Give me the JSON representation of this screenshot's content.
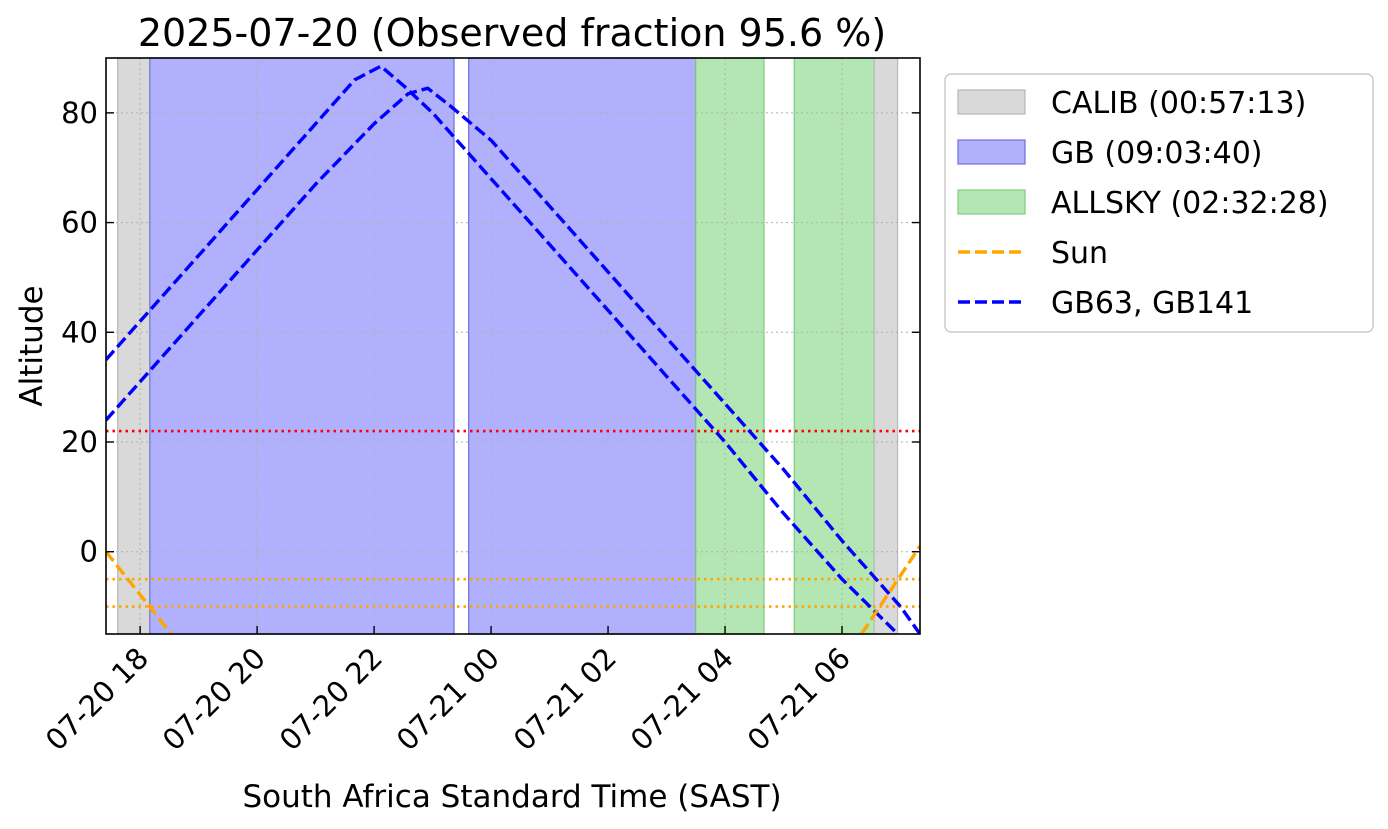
{
  "chart_data": {
    "type": "line",
    "title": "2025-07-20 (Observed fraction 95.6 %)",
    "xlabel": "South Africa Standard Time (SAST)",
    "ylabel": "Altitude",
    "xlim": [
      "2025-07-20 17:25",
      "2025-07-21 07:20"
    ],
    "ylim": [
      -15,
      90
    ],
    "x_ticks": [
      {
        "t": "2025-07-20 18:00",
        "label": "07-20 18"
      },
      {
        "t": "2025-07-20 20:00",
        "label": "07-20 20"
      },
      {
        "t": "2025-07-20 22:00",
        "label": "07-20 22"
      },
      {
        "t": "2025-07-21 00:00",
        "label": "07-21 00"
      },
      {
        "t": "2025-07-21 02:00",
        "label": "07-21 02"
      },
      {
        "t": "2025-07-21 04:00",
        "label": "07-21 04"
      },
      {
        "t": "2025-07-21 06:00",
        "label": "07-21 06"
      }
    ],
    "y_ticks": [
      0,
      20,
      40,
      60,
      80
    ],
    "grid": true,
    "legend_position": "outside-right",
    "spans": [
      {
        "category": "CALIB",
        "start": "2025-07-20 17:37",
        "end": "2025-07-20 18:10",
        "color": "#d9d9d9"
      },
      {
        "category": "GB",
        "start": "2025-07-20 18:10",
        "end": "2025-07-20 23:22",
        "color": "#b0b0fc"
      },
      {
        "category": "GB",
        "start": "2025-07-20 23:37",
        "end": "2025-07-21 03:30",
        "color": "#b0b0fc"
      },
      {
        "category": "ALLSKY",
        "start": "2025-07-21 03:30",
        "end": "2025-07-21 04:40",
        "color": "#b3e6b3"
      },
      {
        "category": "ALLSKY",
        "start": "2025-07-21 05:11",
        "end": "2025-07-21 06:33",
        "color": "#b3e6b3"
      },
      {
        "category": "CALIB",
        "start": "2025-07-21 06:33",
        "end": "2025-07-21 06:57",
        "color": "#d9d9d9"
      }
    ],
    "hlines": [
      {
        "y": 22,
        "color": "#ff0000"
      },
      {
        "y": -5,
        "color": "#ffa500"
      },
      {
        "y": -10,
        "color": "#ffa500"
      }
    ],
    "series": [
      {
        "group": "GB63, GB141",
        "color": "#0000ff",
        "points": [
          [
            "2025-07-20 17:25",
            35
          ],
          [
            "2025-07-20 18:00",
            42
          ],
          [
            "2025-07-20 19:00",
            54
          ],
          [
            "2025-07-20 20:00",
            66
          ],
          [
            "2025-07-20 21:00",
            78
          ],
          [
            "2025-07-20 21:40",
            86
          ],
          [
            "2025-07-20 22:07",
            88.5
          ],
          [
            "2025-07-20 22:30",
            85
          ],
          [
            "2025-07-20 23:00",
            80
          ],
          [
            "2025-07-21 00:00",
            68
          ],
          [
            "2025-07-21 01:00",
            56
          ],
          [
            "2025-07-21 02:00",
            44
          ],
          [
            "2025-07-21 03:00",
            32
          ],
          [
            "2025-07-21 04:00",
            20
          ],
          [
            "2025-07-21 05:00",
            7
          ],
          [
            "2025-07-21 06:00",
            -5
          ],
          [
            "2025-07-21 07:00",
            -15.5
          ]
        ]
      },
      {
        "group": "GB63, GB141",
        "color": "#0000ff",
        "points": [
          [
            "2025-07-20 17:25",
            24
          ],
          [
            "2025-07-20 18:00",
            31
          ],
          [
            "2025-07-20 19:00",
            43
          ],
          [
            "2025-07-20 20:00",
            55
          ],
          [
            "2025-07-20 21:00",
            67
          ],
          [
            "2025-07-20 22:00",
            78
          ],
          [
            "2025-07-20 22:35",
            83.5
          ],
          [
            "2025-07-20 22:55",
            84.5
          ],
          [
            "2025-07-20 23:20",
            81
          ],
          [
            "2025-07-21 00:00",
            75
          ],
          [
            "2025-07-21 01:00",
            63
          ],
          [
            "2025-07-21 02:00",
            51
          ],
          [
            "2025-07-21 03:00",
            39
          ],
          [
            "2025-07-21 04:00",
            27
          ],
          [
            "2025-07-21 05:00",
            15
          ],
          [
            "2025-07-21 06:00",
            2
          ],
          [
            "2025-07-21 07:00",
            -10
          ],
          [
            "2025-07-21 07:20",
            -15
          ]
        ]
      },
      {
        "name": "Sun",
        "color": "#ffa500",
        "points": [
          [
            "2025-07-20 17:25",
            0
          ],
          [
            "2025-07-20 18:32",
            -15
          ]
        ]
      },
      {
        "name": "Sun",
        "color": "#ffa500",
        "points": [
          [
            "2025-07-21 06:20",
            -15
          ],
          [
            "2025-07-21 07:20",
            1
          ]
        ]
      }
    ],
    "legend": [
      {
        "kind": "patch",
        "label": "CALIB (00:57:13)",
        "color": "#d9d9d9"
      },
      {
        "kind": "patch",
        "label": "GB (09:03:40)",
        "color": "#b0b0fc"
      },
      {
        "kind": "patch",
        "label": "ALLSKY (02:32:28)",
        "color": "#b3e6b3"
      },
      {
        "kind": "line",
        "label": "Sun",
        "color": "#ffa500"
      },
      {
        "kind": "line",
        "label": "GB63, GB141",
        "color": "#0000ff"
      }
    ]
  }
}
